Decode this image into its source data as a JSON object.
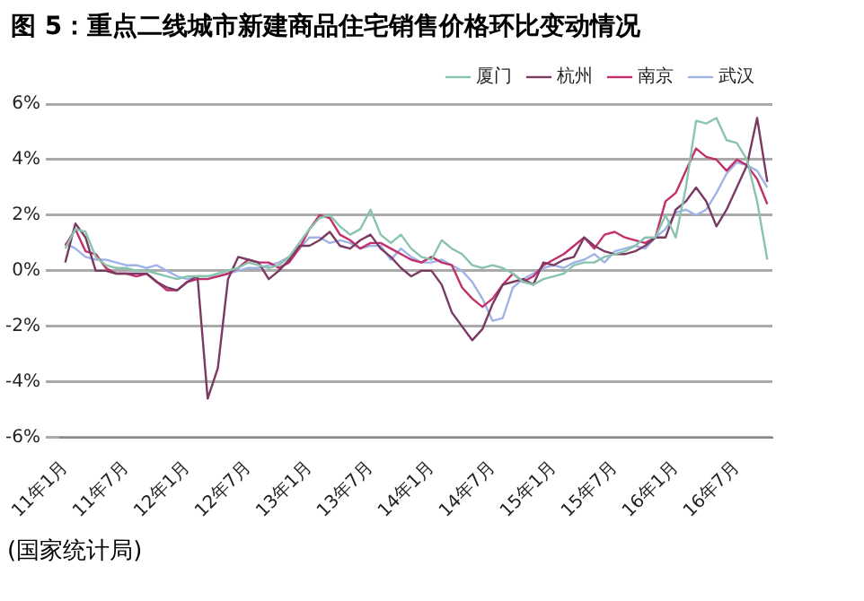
{
  "chart_data": {
    "type": "line",
    "title": "图 5：重点二线城市新建商品住宅销售价格环比变动情况",
    "categories": [
      "11年1月",
      null,
      null,
      null,
      null,
      null,
      "11年7月",
      null,
      null,
      null,
      null,
      null,
      "12年1月",
      null,
      null,
      null,
      null,
      null,
      "12年7月",
      null,
      null,
      null,
      null,
      null,
      "13年1月",
      null,
      null,
      null,
      null,
      null,
      "13年7月",
      null,
      null,
      null,
      null,
      null,
      "14年1月",
      null,
      null,
      null,
      null,
      null,
      "14年7月",
      null,
      null,
      null,
      null,
      null,
      "15年1月",
      null,
      null,
      null,
      null,
      null,
      "15年7月",
      null,
      null,
      null,
      null,
      null,
      "16年1月",
      null,
      null,
      null,
      null,
      null,
      "16年7月",
      null,
      null,
      null
    ],
    "series": [
      {
        "name": "厦门",
        "color": "#88c4ae",
        "values": [
          0.8,
          1.5,
          1.4,
          0.5,
          0.2,
          0.1,
          0.1,
          0.0,
          0.0,
          -0.1,
          -0.2,
          -0.3,
          -0.2,
          -0.2,
          -0.2,
          -0.1,
          0.0,
          0.1,
          0.3,
          0.2,
          0.1,
          0.2,
          0.5,
          1.0,
          1.5,
          1.9,
          2.0,
          1.6,
          1.3,
          1.5,
          2.2,
          1.3,
          1.0,
          1.3,
          0.8,
          0.5,
          0.4,
          1.1,
          0.8,
          0.6,
          0.2,
          0.1,
          0.2,
          0.1,
          -0.1,
          -0.4,
          -0.5,
          -0.3,
          -0.2,
          -0.1,
          0.2,
          0.3,
          0.3,
          0.5,
          0.6,
          0.7,
          0.9,
          1.2,
          1.2,
          2.0,
          1.2,
          3.0,
          5.4,
          5.3,
          5.5,
          4.7,
          4.6,
          4.0,
          2.5,
          0.4
        ]
      },
      {
        "name": "杭州",
        "color": "#7a3a62",
        "values": [
          0.3,
          1.7,
          1.2,
          0.0,
          0.0,
          -0.1,
          -0.1,
          -0.1,
          -0.1,
          -0.4,
          -0.6,
          -0.7,
          -0.4,
          -0.2,
          -4.6,
          -3.5,
          -0.3,
          0.5,
          0.4,
          0.3,
          -0.3,
          0.0,
          0.4,
          0.9,
          0.9,
          1.1,
          1.4,
          0.9,
          0.8,
          1.1,
          1.3,
          0.8,
          0.5,
          0.1,
          -0.2,
          0.0,
          0.0,
          -0.5,
          -1.5,
          -2.0,
          -2.5,
          -2.1,
          -1.2,
          -0.5,
          -0.4,
          -0.3,
          -0.5,
          0.3,
          0.2,
          0.4,
          0.5,
          1.2,
          0.9,
          0.7,
          0.6,
          0.6,
          0.7,
          0.9,
          1.2,
          1.2,
          2.2,
          2.5,
          3.0,
          2.5,
          1.6,
          2.2,
          3.0,
          3.8,
          5.5,
          3.2
        ]
      },
      {
        "name": "南京",
        "color": "#c2306c",
        "values": [
          0.9,
          1.5,
          0.7,
          0.6,
          0.1,
          -0.1,
          -0.1,
          -0.2,
          -0.1,
          -0.4,
          -0.7,
          -0.7,
          -0.4,
          -0.3,
          -0.3,
          -0.2,
          -0.1,
          0.1,
          0.4,
          0.3,
          0.3,
          0.1,
          0.3,
          0.8,
          1.5,
          2.0,
          1.9,
          1.3,
          1.1,
          0.8,
          1.0,
          1.0,
          0.8,
          0.6,
          0.4,
          0.3,
          0.5,
          0.3,
          0.2,
          -0.6,
          -1.0,
          -1.3,
          -1.0,
          -0.5,
          -0.1,
          -0.4,
          -0.2,
          0.2,
          0.4,
          0.6,
          0.9,
          1.2,
          0.8,
          1.3,
          1.4,
          1.2,
          1.1,
          1.0,
          1.2,
          2.5,
          2.8,
          3.6,
          4.4,
          4.1,
          4.0,
          3.6,
          4.0,
          3.8,
          3.3,
          2.4
        ]
      },
      {
        "name": "武汉",
        "color": "#9fb4e6",
        "values": [
          1.0,
          0.8,
          0.5,
          0.4,
          0.4,
          0.3,
          0.2,
          0.2,
          0.1,
          0.2,
          0.0,
          -0.2,
          -0.3,
          -0.2,
          -0.2,
          -0.2,
          -0.1,
          0.0,
          0.1,
          0.1,
          0.2,
          0.3,
          0.5,
          0.8,
          1.2,
          1.2,
          1.0,
          1.1,
          1.0,
          0.8,
          0.9,
          0.9,
          0.4,
          0.8,
          0.5,
          0.3,
          0.3,
          0.4,
          0.2,
          0.0,
          -0.4,
          -1.0,
          -1.8,
          -1.7,
          -0.6,
          -0.3,
          -0.1,
          0.1,
          0.2,
          0.1,
          0.3,
          0.4,
          0.6,
          0.3,
          0.7,
          0.8,
          0.9,
          0.8,
          1.2,
          1.5,
          2.1,
          2.2,
          2.0,
          2.2,
          2.8,
          3.5,
          3.9,
          3.8,
          3.6,
          3.0
        ]
      }
    ],
    "ylim": [
      -6,
      6
    ],
    "yticks": [
      {
        "value": -6,
        "label": "-6%"
      },
      {
        "value": -4,
        "label": "-4%"
      },
      {
        "value": -2,
        "label": "-2%"
      },
      {
        "value": 0,
        "label": "0%"
      },
      {
        "value": 2,
        "label": "2%"
      },
      {
        "value": 4,
        "label": "4%"
      },
      {
        "value": 6,
        "label": "6%"
      }
    ],
    "grid": "y",
    "legend": "top right",
    "marker": "none",
    "line_style": "solid",
    "annotations": [
      "(国家统计局)"
    ]
  }
}
